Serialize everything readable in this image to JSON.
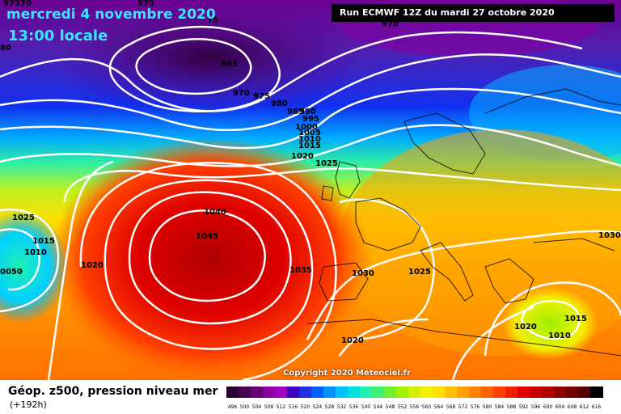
{
  "header": {
    "date": "mercredi 4 novembre 2020",
    "time": "13:00 locale",
    "run": "Run ECMWF 12Z du mardi 27 octobre 2020"
  },
  "copyright": "Copyright 2020 Meteociel.fr",
  "footer": {
    "title": "Géop. z500, pression niveau mer",
    "subtitle": "(+192h)"
  },
  "isobar_labels": [
    "970",
    "970",
    "97970",
    "75",
    "80",
    "965",
    "970",
    "975",
    "980",
    "985",
    "990",
    "995",
    "1000",
    "1005",
    "1010",
    "1015",
    "1020",
    "1025",
    "1040",
    "1045",
    "1035",
    "1030",
    "1025",
    "1020",
    "1025",
    "1015",
    "1010",
    "0050",
    "1020",
    "1030",
    "1025",
    "1030",
    "1020",
    "1015",
    "1010",
    "1020"
  ],
  "legend": {
    "ticks": [
      "496",
      "500",
      "504",
      "508",
      "512",
      "516",
      "520",
      "524",
      "528",
      "532",
      "536",
      "540",
      "544",
      "548",
      "552",
      "556",
      "560",
      "564",
      "568",
      "572",
      "576",
      "580",
      "584",
      "588",
      "592",
      "596",
      "600",
      "604",
      "608",
      "612",
      "616"
    ],
    "colors": [
      "#2a0030",
      "#4a0050",
      "#6a0078",
      "#8a00a0",
      "#a000c0",
      "#4000c0",
      "#2030e0",
      "#0060ff",
      "#0090ff",
      "#00c0ff",
      "#00e0e0",
      "#20f0b0",
      "#40f070",
      "#70f030",
      "#a0f000",
      "#d0f000",
      "#f0f000",
      "#ffe000",
      "#ffc000",
      "#ffa000",
      "#ff8000",
      "#ff6000",
      "#ff4000",
      "#f02000",
      "#e00000",
      "#c80000",
      "#b00000",
      "#900000",
      "#700000",
      "#500000",
      "#000000"
    ]
  }
}
